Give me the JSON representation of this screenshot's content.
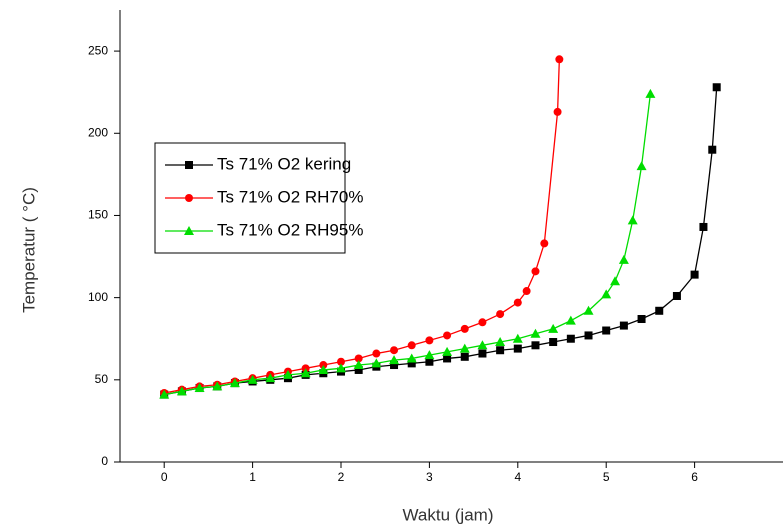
{
  "chart_data": {
    "type": "line",
    "xlabel": "Waktu (jam)",
    "ylabel": "Temperatur ( °C)",
    "xlim": [
      -0.5,
      7
    ],
    "ylim": [
      0,
      275
    ],
    "xticks": [
      0,
      1,
      2,
      3,
      4,
      5,
      6
    ],
    "yticks": [
      0,
      50,
      100,
      150,
      200,
      250
    ],
    "legend": "upper left",
    "series": [
      {
        "name": "Ts 71% O2 kering",
        "color": "#000000",
        "marker": "square",
        "x": [
          0,
          0.2,
          0.4,
          0.6,
          0.8,
          1.0,
          1.2,
          1.4,
          1.6,
          1.8,
          2.0,
          2.2,
          2.4,
          2.6,
          2.8,
          3.0,
          3.2,
          3.4,
          3.6,
          3.8,
          4.0,
          4.2,
          4.4,
          4.6,
          4.8,
          5.0,
          5.2,
          5.4,
          5.6,
          5.8,
          6.0,
          6.1,
          6.2,
          6.25
        ],
        "values": [
          41,
          43,
          45,
          46,
          48,
          49,
          50,
          51,
          53,
          54,
          55,
          56,
          58,
          59,
          60,
          61,
          63,
          64,
          66,
          68,
          69,
          71,
          73,
          75,
          77,
          80,
          83,
          87,
          92,
          101,
          114,
          143,
          190,
          228
        ]
      },
      {
        "name": "Ts 71% O2 RH70%",
        "color": "#ff0000",
        "marker": "circle",
        "x": [
          0,
          0.2,
          0.4,
          0.6,
          0.8,
          1.0,
          1.2,
          1.4,
          1.6,
          1.8,
          2.0,
          2.2,
          2.4,
          2.6,
          2.8,
          3.0,
          3.2,
          3.4,
          3.6,
          3.8,
          4.0,
          4.1,
          4.2,
          4.3,
          4.45,
          4.47
        ],
        "values": [
          42,
          44,
          46,
          47,
          49,
          51,
          53,
          55,
          57,
          59,
          61,
          63,
          66,
          68,
          71,
          74,
          77,
          81,
          85,
          90,
          97,
          104,
          116,
          133,
          213,
          245
        ]
      },
      {
        "name": "Ts 71% O2 RH95%",
        "color": "#00dd00",
        "marker": "triangle",
        "x": [
          0,
          0.2,
          0.4,
          0.6,
          0.8,
          1.0,
          1.2,
          1.4,
          1.6,
          1.8,
          2.0,
          2.2,
          2.4,
          2.6,
          2.8,
          3.0,
          3.2,
          3.4,
          3.6,
          3.8,
          4.0,
          4.2,
          4.4,
          4.6,
          4.8,
          5.0,
          5.1,
          5.2,
          5.3,
          5.4,
          5.5
        ],
        "values": [
          41,
          43,
          45,
          46,
          48,
          50,
          51,
          53,
          54,
          56,
          57,
          59,
          60,
          62,
          63,
          65,
          67,
          69,
          71,
          73,
          75,
          78,
          81,
          86,
          92,
          102,
          110,
          123,
          147,
          180,
          224
        ]
      }
    ]
  }
}
